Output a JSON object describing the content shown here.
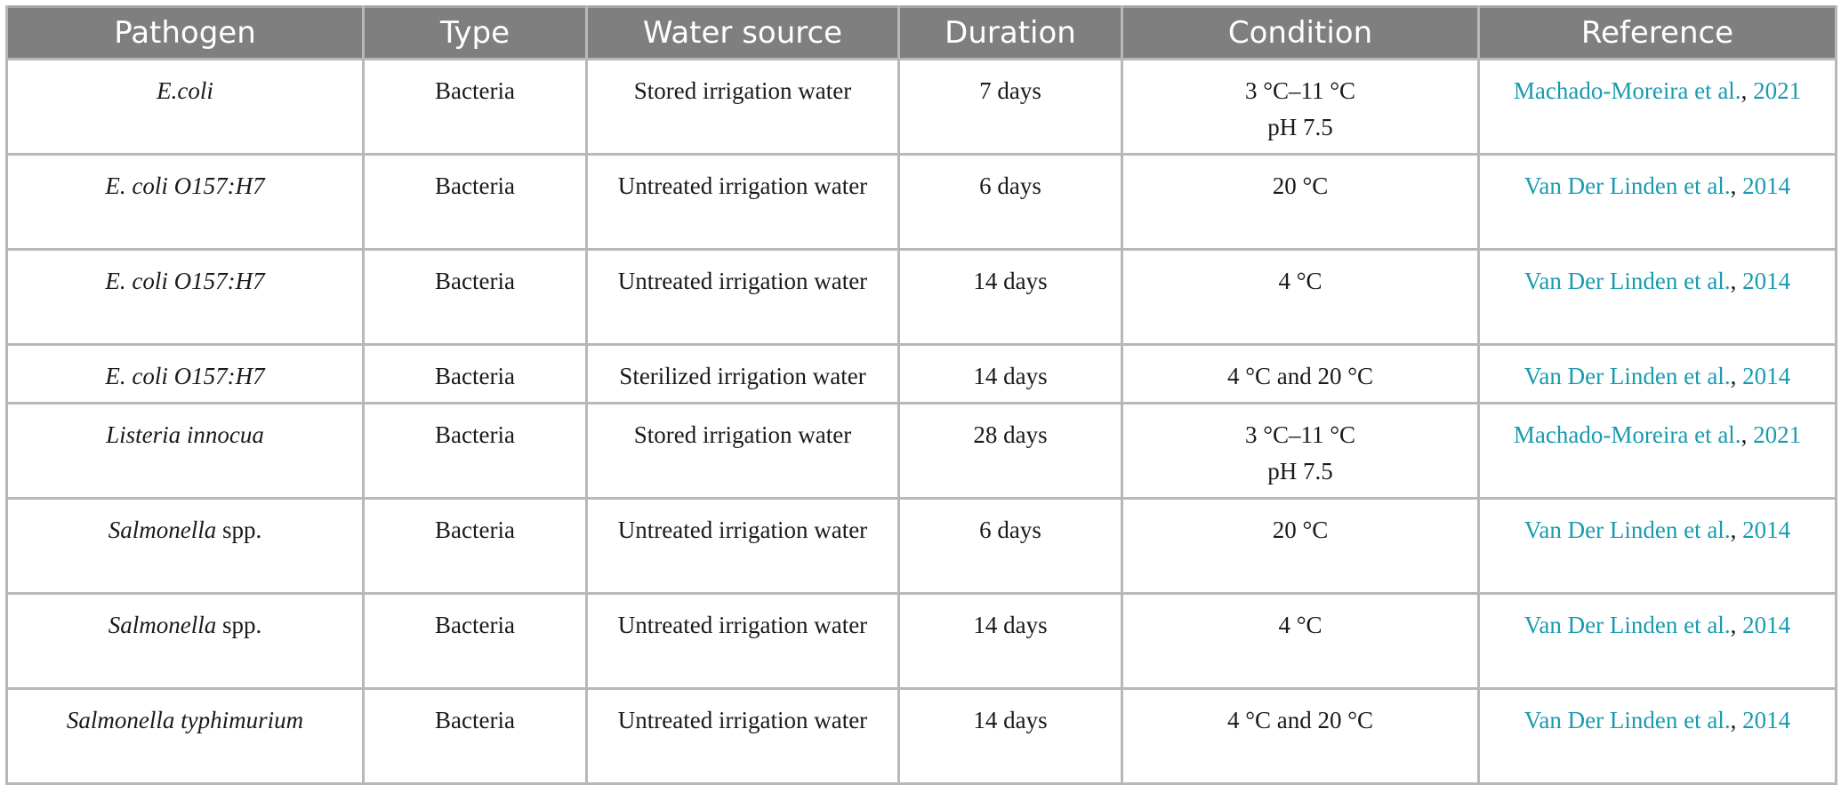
{
  "table": {
    "headers": [
      "Pathogen",
      "Type",
      "Water source",
      "Duration",
      "Condition",
      "Reference"
    ],
    "rows": [
      {
        "pathogen_italic": "E.coli",
        "pathogen_suffix": "",
        "type": "Bacteria",
        "water_source": "Stored irrigation water",
        "duration": "7 days",
        "condition_line1": "3 °C–11 °C",
        "condition_line2": "pH 7.5",
        "reference_authors": "Machado-Moreira et al.",
        "reference_year": "2021"
      },
      {
        "pathogen_italic": "E. coli O157:H7",
        "pathogen_suffix": "",
        "type": "Bacteria",
        "water_source": "Untreated irrigation water",
        "duration": "6 days",
        "condition_line1": "20 °C",
        "condition_line2": "",
        "reference_authors": "Van Der Linden et al.",
        "reference_year": "2014"
      },
      {
        "pathogen_italic": "E. coli O157:H7",
        "pathogen_suffix": "",
        "type": "Bacteria",
        "water_source": "Untreated irrigation water",
        "duration": "14 days",
        "condition_line1": "4 °C",
        "condition_line2": "",
        "reference_authors": "Van Der Linden et al.",
        "reference_year": "2014"
      },
      {
        "pathogen_italic": "E. coli O157:H7",
        "pathogen_suffix": "",
        "type": "Bacteria",
        "water_source": "Sterilized irrigation water",
        "duration": "14 days",
        "condition_line1": "4 °C and 20 °C",
        "condition_line2": "",
        "reference_authors": "Van Der Linden et al.",
        "reference_year": "2014"
      },
      {
        "pathogen_italic": "Listeria innocua",
        "pathogen_suffix": "",
        "type": "Bacteria",
        "water_source": "Stored irrigation water",
        "duration": "28 days",
        "condition_line1": "3 °C–11 °C",
        "condition_line2": "pH 7.5",
        "reference_authors": "Machado-Moreira et al.",
        "reference_year": "2021"
      },
      {
        "pathogen_italic": "Salmonella",
        "pathogen_suffix": " spp.",
        "type": "Bacteria",
        "water_source": "Untreated irrigation water",
        "duration": "6 days",
        "condition_line1": "20 °C",
        "condition_line2": "",
        "reference_authors": "Van Der Linden et al.",
        "reference_year": "2014"
      },
      {
        "pathogen_italic": "Salmonella",
        "pathogen_suffix": " spp.",
        "type": "Bacteria",
        "water_source": "Untreated irrigation water",
        "duration": "14 days",
        "condition_line1": "4 °C",
        "condition_line2": "",
        "reference_authors": "Van Der Linden et al.",
        "reference_year": "2014"
      },
      {
        "pathogen_italic": "Salmonella typhimurium",
        "pathogen_suffix": "",
        "type": "Bacteria",
        "water_source": "Untreated irrigation water",
        "duration": "14 days",
        "condition_line1": "4 °C and 20 °C",
        "condition_line2": "",
        "reference_authors": "Van Der Linden et al.",
        "reference_year": "2014"
      }
    ]
  },
  "colors": {
    "header_bg": "#7f7f7f",
    "header_text": "#ffffff",
    "link": "#1a9ab0",
    "border": "#b8b8b8"
  }
}
